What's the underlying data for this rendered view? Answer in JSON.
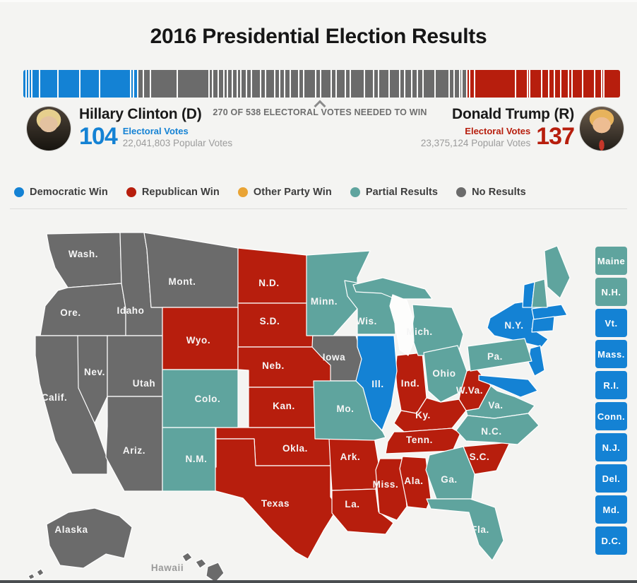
{
  "page": {
    "title": "2016 Presidential Election Results"
  },
  "colors": {
    "democratic": "#1482d4",
    "republican": "#b71e0d",
    "other": "#e9a435",
    "partial": "#5fa49e",
    "none": "#6b6b6b",
    "lake": "#fdfdfc"
  },
  "bar": {
    "needed_text": "270 OF 538 ELECTORAL VOTES NEEDED TO WIN",
    "total_votes": 538,
    "needed_votes": 270,
    "segments": {
      "democratic": [
        5,
        4.4,
        4,
        10.6,
        26,
        30.7,
        28.7,
        44,
        4,
        6
      ],
      "none": [
        8,
        10,
        38,
        44,
        5,
        8,
        8,
        5,
        7,
        7,
        5,
        8,
        7,
        13,
        7,
        13,
        7,
        7,
        8,
        12,
        7,
        17,
        7,
        15,
        7,
        13,
        7,
        20,
        13,
        7,
        15,
        15,
        7,
        10,
        8,
        8,
        17,
        20,
        7,
        8,
        3,
        7
      ],
      "republican": [
        4.7,
        6.7,
        58.3,
        16.7,
        3.3,
        16.7,
        10,
        8.3,
        8.3,
        11.7,
        5,
        15,
        16.7,
        10,
        3.3,
        21.3
      ]
    }
  },
  "candidates": {
    "clinton": {
      "name": "Hillary Clinton (D)",
      "electoral_votes": "104",
      "electoral_label": "Electoral Votes",
      "popular_votes": "22,041,803 Popular Votes"
    },
    "trump": {
      "name": "Donald Trump (R)",
      "electoral_votes": "137",
      "electoral_label": "Electoral Votes",
      "popular_votes": "23,375,124 Popular Votes"
    }
  },
  "legend": {
    "items": [
      {
        "label": "Democratic Win",
        "key": "democratic"
      },
      {
        "label": "Republican Win",
        "key": "republican"
      },
      {
        "label": "Other Party Win",
        "key": "other"
      },
      {
        "label": "Partial Results",
        "key": "partial"
      },
      {
        "label": "No Results",
        "key": "none"
      }
    ]
  },
  "map": {
    "states": [
      {
        "id": "wash",
        "label": "Wash.",
        "result": "none"
      },
      {
        "id": "ore",
        "label": "Ore.",
        "result": "none"
      },
      {
        "id": "calif",
        "label": "Calif.",
        "result": "none"
      },
      {
        "id": "nev",
        "label": "Nev.",
        "result": "none"
      },
      {
        "id": "idaho",
        "label": "Idaho",
        "result": "none"
      },
      {
        "id": "mont",
        "label": "Mont.",
        "result": "none"
      },
      {
        "id": "utah",
        "label": "Utah",
        "result": "none"
      },
      {
        "id": "ariz",
        "label": "Ariz.",
        "result": "none"
      },
      {
        "id": "iowa",
        "label": "Iowa",
        "result": "none"
      },
      {
        "id": "alaska",
        "label": "Alaska",
        "result": "none"
      },
      {
        "id": "hawaii",
        "label": "Hawaii",
        "result": "none",
        "label_style": "dark"
      },
      {
        "id": "nd",
        "label": "N.D.",
        "result": "republican"
      },
      {
        "id": "sd",
        "label": "S.D.",
        "result": "republican"
      },
      {
        "id": "wyo",
        "label": "Wyo.",
        "result": "republican"
      },
      {
        "id": "neb",
        "label": "Neb.",
        "result": "republican"
      },
      {
        "id": "kan",
        "label": "Kan.",
        "result": "republican"
      },
      {
        "id": "okla",
        "label": "Okla.",
        "result": "republican"
      },
      {
        "id": "texas",
        "label": "Texas",
        "result": "republican"
      },
      {
        "id": "ind",
        "label": "Ind.",
        "result": "republican"
      },
      {
        "id": "ky",
        "label": "Ky.",
        "result": "republican"
      },
      {
        "id": "wva",
        "label": "W.Va.",
        "result": "republican"
      },
      {
        "id": "tenn",
        "label": "Tenn.",
        "result": "republican"
      },
      {
        "id": "ark",
        "label": "Ark.",
        "result": "republican"
      },
      {
        "id": "la",
        "label": "La.",
        "result": "republican"
      },
      {
        "id": "miss",
        "label": "Miss.",
        "result": "republican"
      },
      {
        "id": "ala",
        "label": "Ala.",
        "result": "republican"
      },
      {
        "id": "sc",
        "label": "S.C.",
        "result": "republican"
      },
      {
        "id": "ill",
        "label": "Ill.",
        "result": "democratic"
      },
      {
        "id": "ny",
        "label": "N.Y.",
        "result": "democratic"
      },
      {
        "id": "nj",
        "label": "",
        "result": "democratic"
      },
      {
        "id": "md",
        "label": "",
        "result": "democratic"
      },
      {
        "id": "vt",
        "label": "",
        "result": "democratic"
      },
      {
        "id": "mass",
        "label": "",
        "result": "democratic"
      },
      {
        "id": "ctri",
        "label": "",
        "result": "democratic"
      },
      {
        "id": "colo",
        "label": "Colo.",
        "result": "partial"
      },
      {
        "id": "nm",
        "label": "N.M.",
        "result": "partial"
      },
      {
        "id": "minn",
        "label": "Minn.",
        "result": "partial"
      },
      {
        "id": "wis",
        "label": "Wis.",
        "result": "partial"
      },
      {
        "id": "mich",
        "label": "Mich.",
        "result": "partial"
      },
      {
        "id": "mo",
        "label": "Mo.",
        "result": "partial"
      },
      {
        "id": "ohio",
        "label": "Ohio",
        "result": "partial"
      },
      {
        "id": "pa",
        "label": "Pa.",
        "result": "partial"
      },
      {
        "id": "va",
        "label": "Va.",
        "result": "partial"
      },
      {
        "id": "nc",
        "label": "N.C.",
        "result": "partial"
      },
      {
        "id": "ga",
        "label": "Ga.",
        "result": "partial"
      },
      {
        "id": "fla",
        "label": "Fla.",
        "result": "partial"
      },
      {
        "id": "maine",
        "label": "",
        "result": "partial"
      },
      {
        "id": "nh",
        "label": "",
        "result": "partial"
      }
    ],
    "small_states": [
      {
        "label": "Maine",
        "result": "partial"
      },
      {
        "label": "N.H.",
        "result": "partial"
      },
      {
        "label": "Vt.",
        "result": "democratic"
      },
      {
        "label": "Mass.",
        "result": "democratic"
      },
      {
        "label": "R.I.",
        "result": "democratic"
      },
      {
        "label": "Conn.",
        "result": "democratic"
      },
      {
        "label": "N.J.",
        "result": "democratic"
      },
      {
        "label": "Del.",
        "result": "democratic"
      },
      {
        "label": "Md.",
        "result": "democratic"
      },
      {
        "label": "D.C.",
        "result": "democratic"
      }
    ]
  }
}
